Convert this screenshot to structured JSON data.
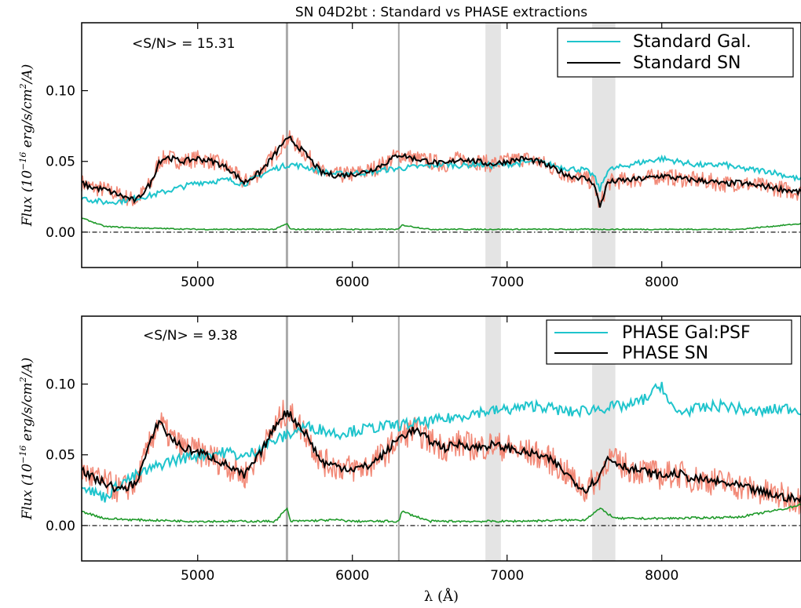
{
  "figure": {
    "title": "SN 04D2bt : Standard vs PHASE extractions",
    "xlabel": "λ (Å)",
    "ylabel": "Flux (10",
    "ylabel_exp": "−16",
    "ylabel_units": " erg/s/cm",
    "ylabel_sq": "2",
    "ylabel_tail": "/A)"
  },
  "colors": {
    "galaxy": "#1fc4cc",
    "sn": "#000000",
    "noisy": "#f28a78",
    "error": "#1f9a2a",
    "skyline": "#aaaaaa",
    "band": "#e4e4e4"
  },
  "chart_data": [
    {
      "type": "line",
      "panel": "top",
      "annotation": "<S/N> = 15.31",
      "xlim": [
        4250,
        8900
      ],
      "ylim": [
        -0.025,
        0.148
      ],
      "xticks": [
        5000,
        6000,
        7000,
        8000
      ],
      "xtick_labels": [
        "5000",
        "6000",
        "7000",
        "8000"
      ],
      "yticks": [
        0.0,
        0.05,
        0.1
      ],
      "ytick_labels": [
        "0.00",
        "0.05",
        "0.10"
      ],
      "zero_line": 0.0,
      "sky_lines": [
        5577,
        6300
      ],
      "telluric_bands": [
        [
          6860,
          6960
        ],
        [
          7550,
          7700
        ]
      ],
      "legend_position": "top-right",
      "series": [
        {
          "name": "Standard Gal.",
          "role": "galaxy",
          "x": [
            4250,
            4300,
            4400,
            4500,
            4600,
            4700,
            4800,
            5000,
            5200,
            5300,
            5400,
            5500,
            5600,
            5700,
            5800,
            5900,
            6000,
            6100,
            6200,
            6300,
            6400,
            6500,
            6600,
            6700,
            6800,
            6900,
            7000,
            7100,
            7200,
            7300,
            7400,
            7500,
            7560,
            7600,
            7650,
            7700,
            7800,
            7900,
            8000,
            8100,
            8200,
            8300,
            8400,
            8500,
            8600,
            8700,
            8800,
            8900
          ],
          "y": [
            0.025,
            0.023,
            0.021,
            0.022,
            0.024,
            0.026,
            0.029,
            0.035,
            0.037,
            0.034,
            0.04,
            0.045,
            0.048,
            0.046,
            0.043,
            0.041,
            0.042,
            0.042,
            0.044,
            0.045,
            0.046,
            0.047,
            0.048,
            0.047,
            0.048,
            0.047,
            0.048,
            0.049,
            0.05,
            0.047,
            0.045,
            0.044,
            0.04,
            0.03,
            0.044,
            0.045,
            0.048,
            0.05,
            0.052,
            0.05,
            0.048,
            0.047,
            0.048,
            0.045,
            0.044,
            0.043,
            0.04,
            0.037
          ]
        },
        {
          "name": "Standard SN",
          "role": "sn",
          "x": [
            4250,
            4300,
            4400,
            4500,
            4600,
            4700,
            4750,
            4800,
            4900,
            5000,
            5100,
            5200,
            5300,
            5400,
            5500,
            5550,
            5600,
            5700,
            5800,
            5900,
            6000,
            6100,
            6200,
            6300,
            6400,
            6500,
            6600,
            6700,
            6800,
            6900,
            7000,
            7100,
            7200,
            7300,
            7400,
            7500,
            7560,
            7600,
            7650,
            7700,
            7800,
            7900,
            8000,
            8100,
            8200,
            8300,
            8400,
            8500,
            8600,
            8700,
            8800,
            8900
          ],
          "y": [
            0.035,
            0.032,
            0.03,
            0.026,
            0.022,
            0.035,
            0.05,
            0.053,
            0.05,
            0.052,
            0.05,
            0.045,
            0.035,
            0.042,
            0.055,
            0.063,
            0.066,
            0.055,
            0.042,
            0.04,
            0.041,
            0.043,
            0.048,
            0.055,
            0.052,
            0.05,
            0.048,
            0.052,
            0.05,
            0.048,
            0.05,
            0.052,
            0.05,
            0.045,
            0.04,
            0.038,
            0.035,
            0.018,
            0.035,
            0.036,
            0.037,
            0.038,
            0.04,
            0.038,
            0.037,
            0.036,
            0.034,
            0.035,
            0.033,
            0.032,
            0.03,
            0.028
          ]
        },
        {
          "name": "",
          "role": "error",
          "x": [
            4250,
            4400,
            4600,
            5000,
            5500,
            5577,
            5600,
            6000,
            6300,
            6320,
            6500,
            7000,
            7500,
            8000,
            8500,
            8600,
            8700,
            8800,
            8900
          ],
          "y": [
            0.01,
            0.004,
            0.003,
            0.002,
            0.002,
            0.006,
            0.002,
            0.002,
            0.002,
            0.005,
            0.002,
            0.002,
            0.002,
            0.002,
            0.002,
            0.003,
            0.004,
            0.005,
            0.006
          ]
        }
      ]
    },
    {
      "type": "line",
      "panel": "bottom",
      "annotation": "<S/N> = 9.38",
      "xlim": [
        4250,
        8900
      ],
      "ylim": [
        -0.025,
        0.148
      ],
      "xticks": [
        5000,
        6000,
        7000,
        8000
      ],
      "xtick_labels": [
        "5000",
        "6000",
        "7000",
        "8000"
      ],
      "yticks": [
        0.0,
        0.05,
        0.1
      ],
      "ytick_labels": [
        "0.00",
        "0.05",
        "0.10"
      ],
      "zero_line": 0.0,
      "sky_lines": [
        5577,
        6300
      ],
      "telluric_bands": [
        [
          6860,
          6960
        ],
        [
          7550,
          7700
        ]
      ],
      "legend_position": "top-right",
      "series": [
        {
          "name": "PHASE Gal:PSF",
          "role": "galaxy",
          "x": [
            4250,
            4300,
            4400,
            4500,
            4600,
            4700,
            4800,
            5000,
            5200,
            5300,
            5400,
            5500,
            5600,
            5700,
            5800,
            5900,
            6000,
            6200,
            6400,
            6600,
            6800,
            7000,
            7200,
            7400,
            7600,
            7800,
            7900,
            8000,
            8050,
            8100,
            8200,
            8400,
            8600,
            8800,
            8900
          ],
          "y": [
            0.03,
            0.025,
            0.02,
            0.03,
            0.035,
            0.04,
            0.045,
            0.05,
            0.052,
            0.048,
            0.055,
            0.06,
            0.065,
            0.07,
            0.068,
            0.065,
            0.067,
            0.07,
            0.072,
            0.075,
            0.08,
            0.082,
            0.085,
            0.08,
            0.083,
            0.085,
            0.09,
            0.1,
            0.085,
            0.08,
            0.082,
            0.085,
            0.08,
            0.083,
            0.082
          ]
        },
        {
          "name": "PHASE SN",
          "role": "sn",
          "x": [
            4250,
            4300,
            4400,
            4500,
            4600,
            4700,
            4750,
            4800,
            4900,
            5000,
            5100,
            5200,
            5300,
            5400,
            5500,
            5560,
            5600,
            5700,
            5800,
            5900,
            6000,
            6100,
            6200,
            6300,
            6400,
            6500,
            6600,
            6700,
            6800,
            6900,
            7000,
            7100,
            7200,
            7300,
            7400,
            7500,
            7600,
            7650,
            7700,
            7800,
            7900,
            8000,
            8100,
            8200,
            8300,
            8400,
            8500,
            8600,
            8700,
            8800,
            8900
          ],
          "y": [
            0.04,
            0.035,
            0.03,
            0.025,
            0.03,
            0.06,
            0.075,
            0.065,
            0.055,
            0.052,
            0.048,
            0.042,
            0.035,
            0.05,
            0.07,
            0.08,
            0.078,
            0.065,
            0.045,
            0.042,
            0.04,
            0.042,
            0.05,
            0.062,
            0.068,
            0.06,
            0.055,
            0.058,
            0.055,
            0.057,
            0.055,
            0.052,
            0.05,
            0.045,
            0.035,
            0.025,
            0.035,
            0.048,
            0.045,
            0.04,
            0.038,
            0.035,
            0.037,
            0.033,
            0.032,
            0.03,
            0.028,
            0.025,
            0.022,
            0.02,
            0.018
          ]
        },
        {
          "name": "",
          "role": "error",
          "x": [
            4250,
            4400,
            4600,
            5000,
            5500,
            5577,
            5600,
            5900,
            6000,
            6300,
            6320,
            6500,
            7000,
            7500,
            7600,
            7700,
            8000,
            8500,
            8600,
            8700,
            8800,
            8900
          ],
          "y": [
            0.01,
            0.005,
            0.004,
            0.003,
            0.003,
            0.012,
            0.003,
            0.004,
            0.003,
            0.003,
            0.01,
            0.003,
            0.003,
            0.004,
            0.012,
            0.005,
            0.005,
            0.006,
            0.008,
            0.01,
            0.012,
            0.015
          ]
        }
      ]
    }
  ]
}
